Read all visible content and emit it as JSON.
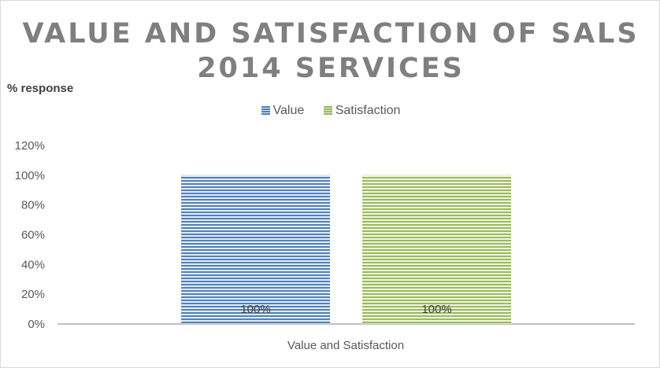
{
  "chart_data": {
    "type": "bar",
    "title_line1": "VALUE AND SATISFACTION OF SALS",
    "title_line2": "2014 SERVICES",
    "ylabel": "% response",
    "xlabel": "",
    "categories": [
      "Value and Satisfaction"
    ],
    "series": [
      {
        "name": "Value",
        "values": [
          100
        ],
        "color": "#4f81bd",
        "label": "100%"
      },
      {
        "name": "Satisfaction",
        "values": [
          100
        ],
        "color": "#9bbb59",
        "label": "100%"
      }
    ],
    "ylim": [
      0,
      120
    ],
    "yticks": [
      "0%",
      "20%",
      "40%",
      "60%",
      "80%",
      "100%",
      "120%"
    ],
    "grid": false,
    "legend": "top-center"
  }
}
